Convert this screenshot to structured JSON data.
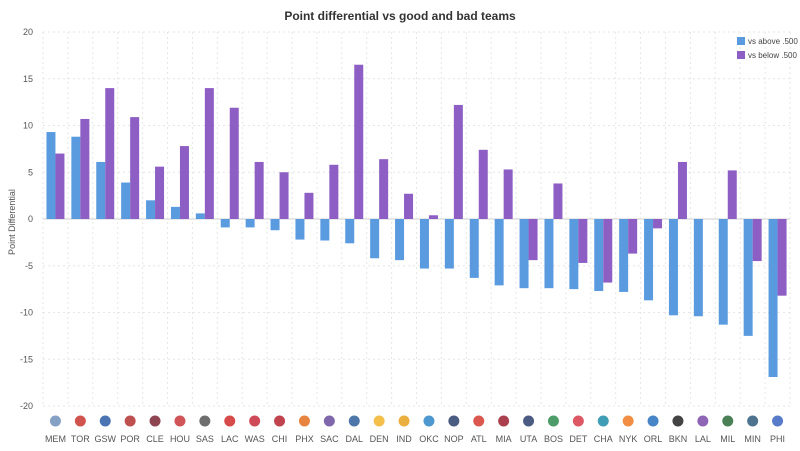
{
  "chart_data": {
    "type": "bar",
    "title": "Point differential vs good and bad teams",
    "xlabel": "",
    "ylabel": "Point Differential",
    "ylim": [
      -20,
      20
    ],
    "yticks": [
      20,
      15,
      10,
      5,
      0,
      -5,
      -10,
      -15,
      -20
    ],
    "grid": true,
    "legend_position": "top-right",
    "categories": [
      "MEM",
      "TOR",
      "GSW",
      "POR",
      "CLE",
      "HOU",
      "SAS",
      "LAC",
      "WAS",
      "CHI",
      "PHX",
      "SAC",
      "DAL",
      "DEN",
      "IND",
      "OKC",
      "NOP",
      "ATL",
      "MIA",
      "UTA",
      "BOS",
      "DET",
      "CHA",
      "NYK",
      "ORL",
      "BKN",
      "LAL",
      "MIL",
      "MIN",
      "PHI"
    ],
    "series": [
      {
        "name": "vs above .500",
        "color": "#5a9be0",
        "values": [
          9.3,
          8.8,
          6.1,
          3.9,
          2.0,
          1.3,
          0.6,
          -0.9,
          -0.9,
          -1.2,
          -2.2,
          -2.3,
          -2.6,
          -4.2,
          -4.4,
          -5.3,
          -5.3,
          -6.3,
          -7.1,
          -7.4,
          -7.4,
          -7.5,
          -7.7,
          -7.8,
          -8.7,
          -10.3,
          -10.4,
          -11.3,
          -12.5,
          -16.9
        ]
      },
      {
        "name": "vs below .500",
        "color": "#8d5ec4",
        "values": [
          7.0,
          10.7,
          14.0,
          10.9,
          5.6,
          7.8,
          14.0,
          11.9,
          6.1,
          5.0,
          2.8,
          5.8,
          16.5,
          6.4,
          2.7,
          0.4,
          12.2,
          7.4,
          5.3,
          -4.4,
          3.8,
          -4.7,
          -6.8,
          -3.7,
          -1.0,
          6.1,
          0.0,
          5.2,
          -4.5,
          -8.2
        ]
      }
    ]
  }
}
